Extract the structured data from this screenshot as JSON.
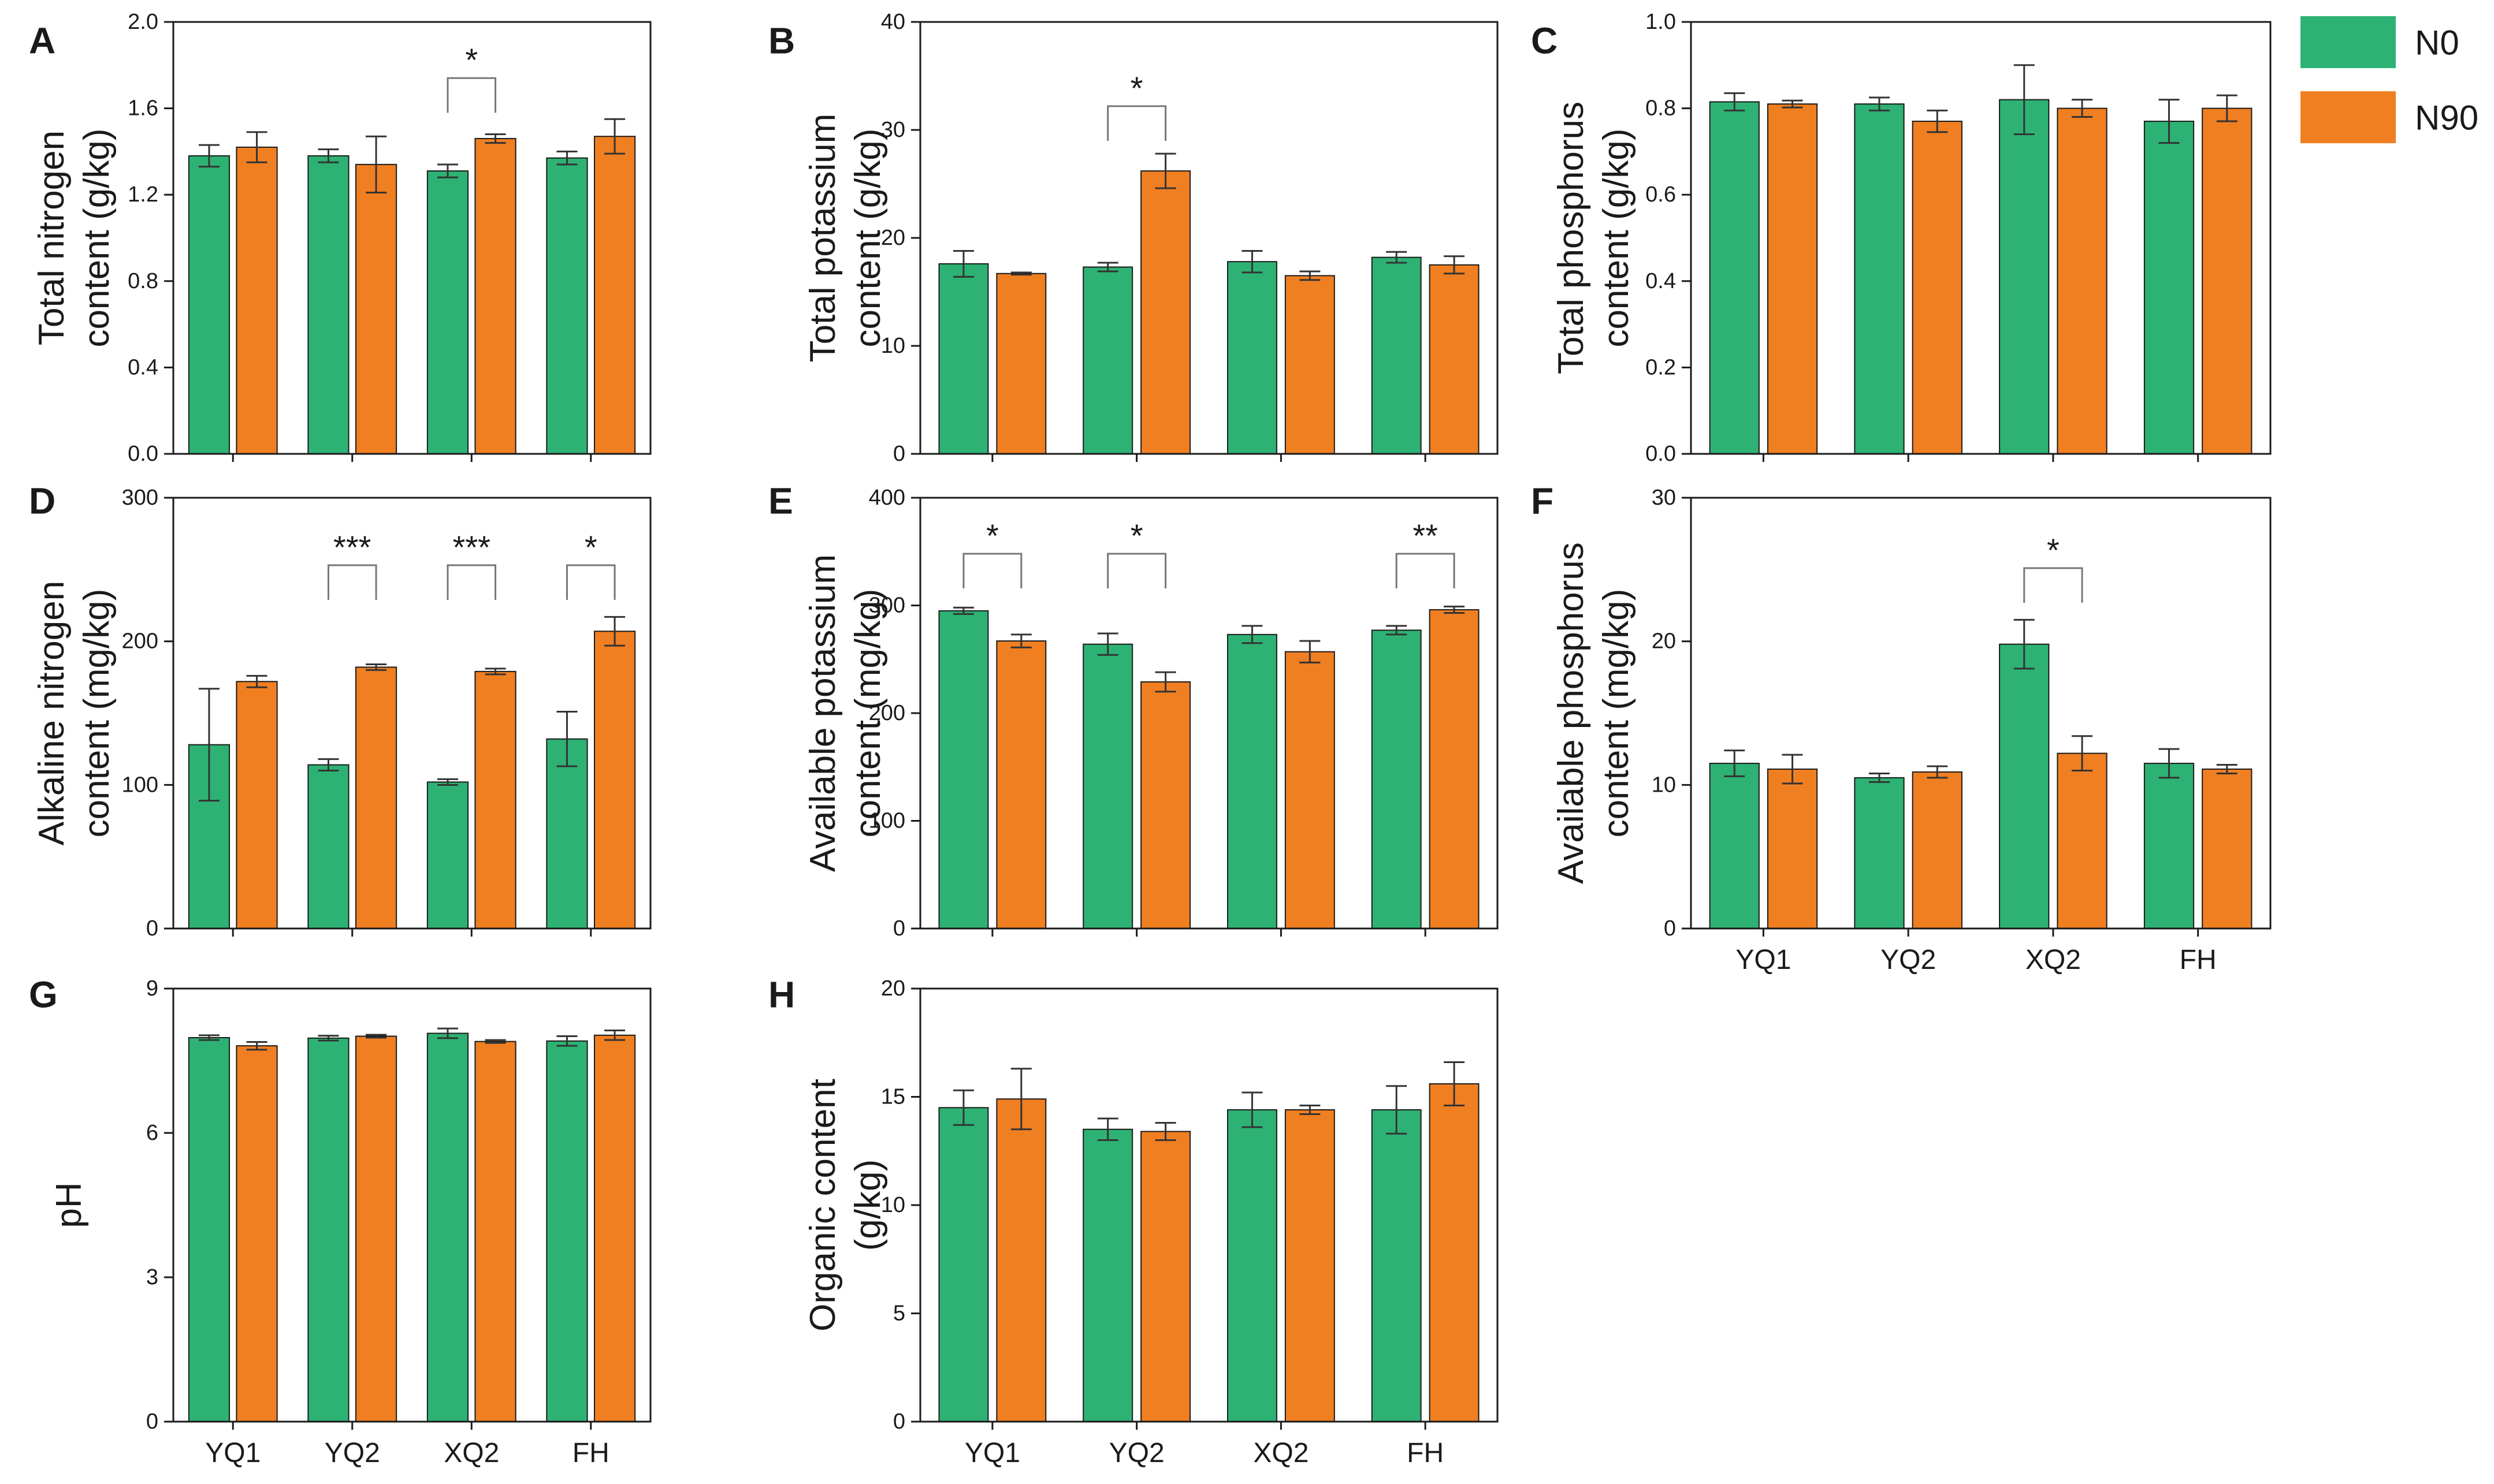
{
  "colors": {
    "N0": "#2db274",
    "N90": "#f07f22",
    "axis": "#1a1a1a"
  },
  "legend": {
    "items": [
      {
        "label": "N0",
        "color": "#2db274"
      },
      {
        "label": "N90",
        "color": "#f07f22"
      }
    ]
  },
  "chart_data": [
    {
      "panel": "A",
      "type": "bar",
      "show_xticks": false,
      "categories": [
        "YQ1",
        "YQ2",
        "XQ2",
        "FH"
      ],
      "ylabel_lines": [
        "Total nitrogen",
        "content (g/kg)"
      ],
      "ylim": [
        0,
        2.0
      ],
      "yticks": [
        "0.0",
        "0.4",
        "0.8",
        "1.2",
        "1.6",
        "2.0"
      ],
      "series": [
        {
          "name": "N0",
          "values": [
            1.38,
            1.38,
            1.31,
            1.37
          ],
          "errors": [
            0.05,
            0.03,
            0.03,
            0.03
          ]
        },
        {
          "name": "N90",
          "values": [
            1.42,
            1.34,
            1.46,
            1.47
          ],
          "errors": [
            0.07,
            0.13,
            0.02,
            0.08
          ]
        }
      ],
      "annotations": [
        {
          "category": "XQ2",
          "label": "*",
          "bracket_top": 1.74
        }
      ]
    },
    {
      "panel": "B",
      "type": "bar",
      "show_xticks": false,
      "categories": [
        "YQ1",
        "YQ2",
        "XQ2",
        "FH"
      ],
      "ylabel_lines": [
        "Total potassium",
        "content (g/kg)"
      ],
      "ylim": [
        0,
        40
      ],
      "yticks": [
        "0",
        "10",
        "20",
        "30",
        "40"
      ],
      "series": [
        {
          "name": "N0",
          "values": [
            17.6,
            17.3,
            17.8,
            18.2
          ],
          "errors": [
            1.2,
            0.4,
            1.0,
            0.5
          ]
        },
        {
          "name": "N90",
          "values": [
            16.7,
            26.2,
            16.5,
            17.5
          ],
          "errors": [
            0.1,
            1.6,
            0.4,
            0.8
          ]
        }
      ],
      "annotations": [
        {
          "category": "YQ2",
          "label": "*",
          "bracket_top": 32.2
        }
      ]
    },
    {
      "panel": "C",
      "type": "bar",
      "show_xticks": false,
      "categories": [
        "YQ1",
        "YQ2",
        "XQ2",
        "FH"
      ],
      "ylabel_lines": [
        "Total phosphorus",
        "content (g/kg)"
      ],
      "ylim": [
        0,
        1.0
      ],
      "yticks": [
        "0.0",
        "0.2",
        "0.4",
        "0.6",
        "0.8",
        "1.0"
      ],
      "series": [
        {
          "name": "N0",
          "values": [
            0.815,
            0.81,
            0.82,
            0.77
          ],
          "errors": [
            0.02,
            0.015,
            0.08,
            0.05
          ]
        },
        {
          "name": "N90",
          "values": [
            0.81,
            0.77,
            0.8,
            0.8
          ],
          "errors": [
            0.008,
            0.025,
            0.02,
            0.03
          ]
        }
      ],
      "annotations": []
    },
    {
      "panel": "D",
      "type": "bar",
      "show_xticks": false,
      "categories": [
        "YQ1",
        "YQ2",
        "XQ2",
        "FH"
      ],
      "ylabel_lines": [
        "Alkaline nitrogen",
        "content (mg/kg)"
      ],
      "ylim": [
        0,
        300
      ],
      "yticks": [
        "0",
        "100",
        "200",
        "300"
      ],
      "series": [
        {
          "name": "N0",
          "values": [
            128,
            114,
            102,
            132
          ],
          "errors": [
            39,
            4,
            2,
            19
          ]
        },
        {
          "name": "N90",
          "values": [
            172,
            182,
            179,
            207
          ],
          "errors": [
            4,
            2,
            2,
            10
          ]
        }
      ],
      "annotations": [
        {
          "category": "YQ2",
          "label": "***",
          "bracket_top": 253
        },
        {
          "category": "XQ2",
          "label": "***",
          "bracket_top": 253
        },
        {
          "category": "FH",
          "label": "*",
          "bracket_top": 253
        }
      ]
    },
    {
      "panel": "E",
      "type": "bar",
      "show_xticks": false,
      "categories": [
        "YQ1",
        "YQ2",
        "XQ2",
        "FH"
      ],
      "ylabel_lines": [
        "Available potassium",
        "content (mg/kg)"
      ],
      "ylim": [
        0,
        400
      ],
      "yticks": [
        "0",
        "100",
        "200",
        "300",
        "400"
      ],
      "series": [
        {
          "name": "N0",
          "values": [
            295,
            264,
            273,
            277
          ],
          "errors": [
            3,
            10,
            8,
            4
          ]
        },
        {
          "name": "N90",
          "values": [
            267,
            229,
            257,
            296
          ],
          "errors": [
            6,
            9,
            10,
            3
          ]
        }
      ],
      "annotations": [
        {
          "category": "YQ1",
          "label": "*",
          "bracket_top": 348
        },
        {
          "category": "YQ2",
          "label": "*",
          "bracket_top": 348
        },
        {
          "category": "FH",
          "label": "**",
          "bracket_top": 348
        }
      ]
    },
    {
      "panel": "F",
      "type": "bar",
      "show_xticks": true,
      "categories": [
        "YQ1",
        "YQ2",
        "XQ2",
        "FH"
      ],
      "ylabel_lines": [
        "Available phosphorus",
        "content (mg/kg)"
      ],
      "ylim": [
        0,
        30
      ],
      "yticks": [
        "0",
        "10",
        "20",
        "30"
      ],
      "series": [
        {
          "name": "N0",
          "values": [
            11.5,
            10.5,
            19.8,
            11.5
          ],
          "errors": [
            0.9,
            0.3,
            1.7,
            1.0
          ]
        },
        {
          "name": "N90",
          "values": [
            11.1,
            10.9,
            12.2,
            11.1
          ],
          "errors": [
            1.0,
            0.4,
            1.2,
            0.3
          ]
        }
      ],
      "annotations": [
        {
          "category": "XQ2",
          "label": "*",
          "bracket_top": 25.1
        }
      ]
    },
    {
      "panel": "G",
      "type": "bar",
      "show_xticks": true,
      "categories": [
        "YQ1",
        "YQ2",
        "XQ2",
        "FH"
      ],
      "ylabel_lines": [
        "pH"
      ],
      "ylim": [
        0,
        9
      ],
      "yticks": [
        "0",
        "3",
        "6",
        "9"
      ],
      "series": [
        {
          "name": "N0",
          "values": [
            7.98,
            7.97,
            8.07,
            7.91
          ],
          "errors": [
            0.05,
            0.05,
            0.1,
            0.1
          ]
        },
        {
          "name": "N90",
          "values": [
            7.81,
            8.01,
            7.9,
            8.03
          ],
          "errors": [
            0.08,
            0.03,
            0.03,
            0.1
          ]
        }
      ],
      "annotations": []
    },
    {
      "panel": "H",
      "type": "bar",
      "show_xticks": true,
      "categories": [
        "YQ1",
        "YQ2",
        "XQ2",
        "FH"
      ],
      "ylabel_lines": [
        "Organic content",
        "(g/kg)"
      ],
      "ylim": [
        0,
        20
      ],
      "yticks": [
        "0",
        "5",
        "10",
        "15",
        "20"
      ],
      "series": [
        {
          "name": "N0",
          "values": [
            14.5,
            13.5,
            14.4,
            14.4
          ],
          "errors": [
            0.8,
            0.5,
            0.8,
            1.1
          ]
        },
        {
          "name": "N90",
          "values": [
            14.9,
            13.4,
            14.4,
            15.6
          ],
          "errors": [
            1.4,
            0.4,
            0.2,
            1.0
          ]
        }
      ],
      "annotations": []
    }
  ]
}
